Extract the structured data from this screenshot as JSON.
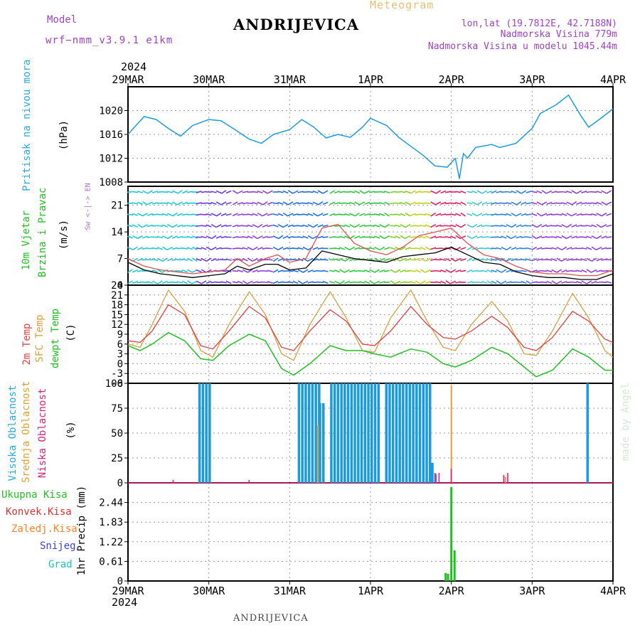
{
  "header": {
    "model_label": "Model",
    "model_name": "wrf−nmm_v3.9.1  e1km",
    "title": "ANDRIJEVICA",
    "meteogram_label": "Meteogram",
    "lonlat": "lon,lat (19.7812E, 42.7188N)",
    "elevation": "Nadmorska Visina 779m",
    "model_elevation": "Nadmorska Visina u modelu 1045.44m"
  },
  "footer": {
    "station": "ANDRIJEVICA",
    "credit": "made by Angel"
  },
  "time_axis": {
    "year": "2024",
    "ticks": [
      "29MAR",
      "30MAR",
      "31MAR",
      "1APR",
      "2APR",
      "3APR",
      "4APR"
    ]
  },
  "colors": {
    "pressure": "#1a9be0",
    "temp2m": "#e04040",
    "sfc_temp": "#d8a040",
    "dewpt": "#20c020",
    "high_cloud": "#1a9be0",
    "mid_cloud": "#e0a030",
    "low_cloud": "#e02080",
    "precip_total": "#20c020",
    "convective": "#e03030",
    "frozen": "#ff8020",
    "snow": "#4040e0",
    "hail": "#20c0c0",
    "purple_text": "#a040c8"
  },
  "chart_data": [
    {
      "type": "line",
      "ylabel": "Pritisak na nivou mora",
      "unit": "(hPa)",
      "ylim": [
        1008,
        1024
      ],
      "yticks": [
        1008,
        1012,
        1016,
        1020
      ],
      "x_days": [
        0,
        0.1,
        0.2,
        0.35,
        0.5,
        0.65,
        0.8,
        1.0,
        1.15,
        1.3,
        1.5,
        1.65,
        1.8,
        2.0,
        2.15,
        2.3,
        2.45,
        2.6,
        2.75,
        2.9,
        3.0,
        3.2,
        3.35,
        3.5,
        3.65,
        3.8,
        3.95,
        4.05,
        4.1,
        4.15,
        4.2,
        4.3,
        4.5,
        4.6,
        4.8,
        5.0,
        5.1,
        5.3,
        5.45,
        5.6,
        5.7,
        5.85,
        6.0
      ],
      "series": [
        {
          "values": [
            1016,
            1017.5,
            1019,
            1018.5,
            1017,
            1015.7,
            1017.5,
            1018.5,
            1018.3,
            1017,
            1015.2,
            1014.5,
            1016,
            1016.8,
            1018.5,
            1017.2,
            1015.4,
            1016,
            1015.5,
            1017.2,
            1018.7,
            1017.5,
            1015.5,
            1014,
            1012.5,
            1010.7,
            1010.5,
            1012,
            1008.6,
            1012.8,
            1012,
            1013.8,
            1014.3,
            1013.8,
            1014.5,
            1017,
            1019.5,
            1021,
            1022.6,
            1019.2,
            1017.2,
            1018.7,
            1020.3
          ]
        }
      ]
    },
    {
      "type": "line",
      "ylabel": "10m Vjetar",
      "ylabel2": "Brzina i Pravac",
      "unit": "(m/s)",
      "legend_compass": "w <-|-> E",
      "compass_n": "N",
      "compass_s": "S",
      "ylim": [
        0,
        26
      ],
      "yticks": [
        0,
        7,
        14,
        21
      ],
      "x_days": [
        0,
        0.2,
        0.4,
        0.6,
        0.8,
        1.0,
        1.2,
        1.35,
        1.5,
        1.7,
        1.85,
        2.0,
        2.2,
        2.4,
        2.6,
        2.8,
        3.0,
        3.2,
        3.4,
        3.6,
        3.8,
        4.0,
        4.2,
        4.4,
        4.6,
        4.8,
        5.0,
        5.2,
        5.4,
        5.6,
        5.8,
        6.0
      ],
      "series": [
        {
          "values": [
            6,
            4,
            3,
            2.5,
            2,
            2.5,
            3,
            5,
            4,
            5.5,
            5.5,
            4,
            4.5,
            9,
            8,
            7,
            6.5,
            6,
            7.5,
            8,
            8.5,
            10,
            8,
            6,
            5.5,
            3.5,
            2.5,
            2,
            2,
            1.5,
            1.5,
            3
          ]
        },
        {
          "values": [
            7,
            5,
            4,
            3.5,
            3,
            3.5,
            4,
            7,
            5,
            7,
            8,
            6,
            7,
            15,
            16,
            11,
            9,
            8,
            10,
            13,
            14,
            15,
            11,
            8,
            7,
            5,
            3.5,
            3,
            3,
            2.5,
            2.5,
            4
          ]
        }
      ],
      "arrow_bands": [
        {
          "from": 0.0,
          "to": 0.85,
          "color": "#20c8d8"
        },
        {
          "from": 0.85,
          "to": 1.3,
          "color": "#6a3de8"
        },
        {
          "from": 1.3,
          "to": 1.8,
          "color": "#9040d8"
        },
        {
          "from": 1.8,
          "to": 2.5,
          "color": "#2070e0"
        },
        {
          "from": 2.5,
          "to": 3.25,
          "color": "#30c840"
        },
        {
          "from": 3.25,
          "to": 3.5,
          "color": "#80d020"
        },
        {
          "from": 3.5,
          "to": 3.75,
          "color": "#c0d020"
        },
        {
          "from": 3.75,
          "to": 4.2,
          "color": "#e02060"
        },
        {
          "from": 4.2,
          "to": 4.5,
          "color": "#40c8d0"
        },
        {
          "from": 4.5,
          "to": 5.0,
          "color": "#3080e0"
        },
        {
          "from": 5.0,
          "to": 6.0,
          "color": "#9040d8"
        }
      ]
    },
    {
      "type": "line",
      "ylabels": [
        "2m Temp",
        "SFC Temp",
        "dewpt Temp"
      ],
      "unit": "(C)",
      "ylim": [
        -6,
        24
      ],
      "yticks": [
        -6,
        -3,
        0,
        3,
        6,
        9,
        12,
        15,
        18,
        21,
        24
      ],
      "x_days": [
        0,
        0.15,
        0.3,
        0.5,
        0.7,
        0.9,
        1.05,
        1.25,
        1.5,
        1.7,
        1.9,
        2.05,
        2.25,
        2.5,
        2.7,
        2.9,
        3.05,
        3.25,
        3.5,
        3.7,
        3.9,
        4.05,
        4.25,
        4.5,
        4.7,
        4.9,
        5.05,
        5.25,
        5.5,
        5.7,
        5.9,
        6.0
      ],
      "series": [
        {
          "name": "2m",
          "values": [
            7,
            6.5,
            10,
            18,
            15,
            5.5,
            4.5,
            10,
            17.5,
            14,
            5,
            4,
            10,
            16.5,
            13,
            6,
            5.5,
            10,
            17.5,
            12,
            8,
            7.5,
            10,
            14.5,
            11,
            5,
            4,
            8,
            16,
            13,
            7.5,
            6.5
          ]
        },
        {
          "name": "sfc",
          "values": [
            6,
            5,
            12,
            22.5,
            16,
            4,
            2,
            12,
            22,
            15,
            3,
            1,
            12,
            22,
            14,
            4,
            3.5,
            14,
            22.5,
            13,
            5,
            4,
            12,
            19,
            13,
            3,
            2.5,
            10,
            21.5,
            14,
            4,
            2
          ]
        },
        {
          "name": "dew",
          "values": [
            5.5,
            4,
            6,
            9.5,
            7,
            1.5,
            1,
            5.5,
            9,
            7,
            -1.5,
            -3.5,
            0,
            5.5,
            4,
            4,
            3,
            2,
            4.5,
            3.5,
            0,
            -1,
            1,
            5,
            3,
            -1,
            -4,
            -2,
            4.5,
            2,
            -2,
            -2
          ]
        }
      ]
    },
    {
      "type": "bar",
      "ylabels": [
        "Visoka Oblacnost",
        "Srednja Oblacnost",
        "Niska Oblacnost"
      ],
      "unit": "(%)",
      "ylim": [
        0,
        100
      ],
      "yticks": [
        0,
        25,
        50,
        75,
        100
      ],
      "bar_groups": [
        {
          "from": 0.87,
          "to": 1.0,
          "value": 100
        },
        {
          "from": 2.1,
          "to": 2.36,
          "value": 100
        },
        {
          "from": 2.36,
          "to": 2.42,
          "value": 80
        },
        {
          "from": 2.5,
          "to": 3.1,
          "value": 100
        },
        {
          "from": 3.18,
          "to": 3.75,
          "value": 100
        },
        {
          "from": 3.75,
          "to": 3.79,
          "value": 20
        },
        {
          "from": 3.79,
          "to": 3.83,
          "value": 9
        },
        {
          "from": 5.67,
          "to": 5.71,
          "value": 100
        }
      ],
      "mid_spikes": [
        {
          "x": 2.35,
          "value": 58
        },
        {
          "x": 4.0,
          "value": 98
        },
        {
          "x": 4.67,
          "value": 6
        }
      ],
      "low_spikes": [
        {
          "x": 0.56,
          "value": 3
        },
        {
          "x": 1.5,
          "value": 3
        },
        {
          "x": 3.8,
          "value": 10
        },
        {
          "x": 3.85,
          "value": 10
        },
        {
          "x": 4.0,
          "value": 14
        },
        {
          "x": 4.65,
          "value": 8
        },
        {
          "x": 4.7,
          "value": 10
        }
      ]
    },
    {
      "type": "bar",
      "ylabel": "1hr Precip (mm)",
      "legend": [
        "Ukupna Kisa",
        "Konvek.Kisa",
        "Zaledj.Kisa",
        "Snijeg",
        "Grad"
      ],
      "ylim": [
        0,
        3.05
      ],
      "yticks": [
        0,
        0.61,
        1.22,
        1.83,
        2.44
      ],
      "bars": [
        {
          "x": 3.93,
          "value": 0.25
        },
        {
          "x": 3.96,
          "value": 0.22
        },
        {
          "x": 4.0,
          "value": 2.92
        },
        {
          "x": 4.04,
          "value": 0.95
        }
      ]
    }
  ]
}
